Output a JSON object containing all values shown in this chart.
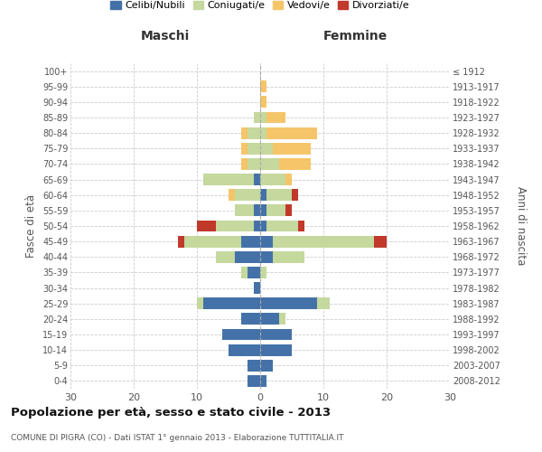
{
  "age_groups": [
    "100+",
    "95-99",
    "90-94",
    "85-89",
    "80-84",
    "75-79",
    "70-74",
    "65-69",
    "60-64",
    "55-59",
    "50-54",
    "45-49",
    "40-44",
    "35-39",
    "30-34",
    "25-29",
    "20-24",
    "15-19",
    "10-14",
    "5-9",
    "0-4"
  ],
  "birth_years": [
    "≤ 1912",
    "1913-1917",
    "1918-1922",
    "1923-1927",
    "1928-1932",
    "1933-1937",
    "1938-1942",
    "1943-1947",
    "1948-1952",
    "1953-1957",
    "1958-1962",
    "1963-1967",
    "1968-1972",
    "1973-1977",
    "1978-1982",
    "1983-1987",
    "1988-1992",
    "1993-1997",
    "1998-2002",
    "2003-2007",
    "2008-2012"
  ],
  "male": {
    "celibi": [
      0,
      0,
      0,
      0,
      0,
      0,
      0,
      1,
      0,
      1,
      1,
      3,
      4,
      2,
      1,
      9,
      3,
      6,
      5,
      2,
      2
    ],
    "coniugati": [
      0,
      0,
      0,
      1,
      2,
      2,
      2,
      8,
      4,
      3,
      6,
      9,
      3,
      1,
      0,
      1,
      0,
      0,
      0,
      0,
      0
    ],
    "vedovi": [
      0,
      0,
      0,
      0,
      1,
      1,
      1,
      0,
      1,
      0,
      0,
      0,
      0,
      0,
      0,
      0,
      0,
      0,
      0,
      0,
      0
    ],
    "divorziati": [
      0,
      0,
      0,
      0,
      0,
      0,
      0,
      0,
      0,
      0,
      3,
      1,
      0,
      0,
      0,
      0,
      0,
      0,
      0,
      0,
      0
    ]
  },
  "female": {
    "nubili": [
      0,
      0,
      0,
      0,
      0,
      0,
      0,
      0,
      1,
      1,
      1,
      2,
      2,
      0,
      0,
      9,
      3,
      5,
      5,
      2,
      1
    ],
    "coniugate": [
      0,
      0,
      0,
      1,
      1,
      2,
      3,
      4,
      4,
      3,
      5,
      16,
      5,
      1,
      0,
      2,
      1,
      0,
      0,
      0,
      0
    ],
    "vedove": [
      0,
      1,
      1,
      3,
      8,
      6,
      5,
      1,
      0,
      0,
      0,
      0,
      0,
      0,
      0,
      0,
      0,
      0,
      0,
      0,
      0
    ],
    "divorziate": [
      0,
      0,
      0,
      0,
      0,
      0,
      0,
      0,
      1,
      1,
      1,
      2,
      0,
      0,
      0,
      0,
      0,
      0,
      0,
      0,
      0
    ]
  },
  "colors": {
    "celibi": "#4472a8",
    "coniugati": "#c5d89d",
    "vedovi": "#f5c56a",
    "divorziati": "#c0392b"
  },
  "title": "Popolazione per età, sesso e stato civile - 2013",
  "subtitle": "COMUNE DI PIGRA (CO) - Dati ISTAT 1° gennaio 2013 - Elaborazione TUTTITALIA.IT",
  "xlabel_left": "Maschi",
  "xlabel_right": "Femmine",
  "ylabel_left": "Fasce di età",
  "ylabel_right": "Anni di nascita",
  "xlim": 30,
  "legend_labels": [
    "Celibi/Nubili",
    "Coniugati/e",
    "Vedovi/e",
    "Divorziati/e"
  ],
  "bg_color": "#ffffff",
  "grid_color": "#cccccc"
}
